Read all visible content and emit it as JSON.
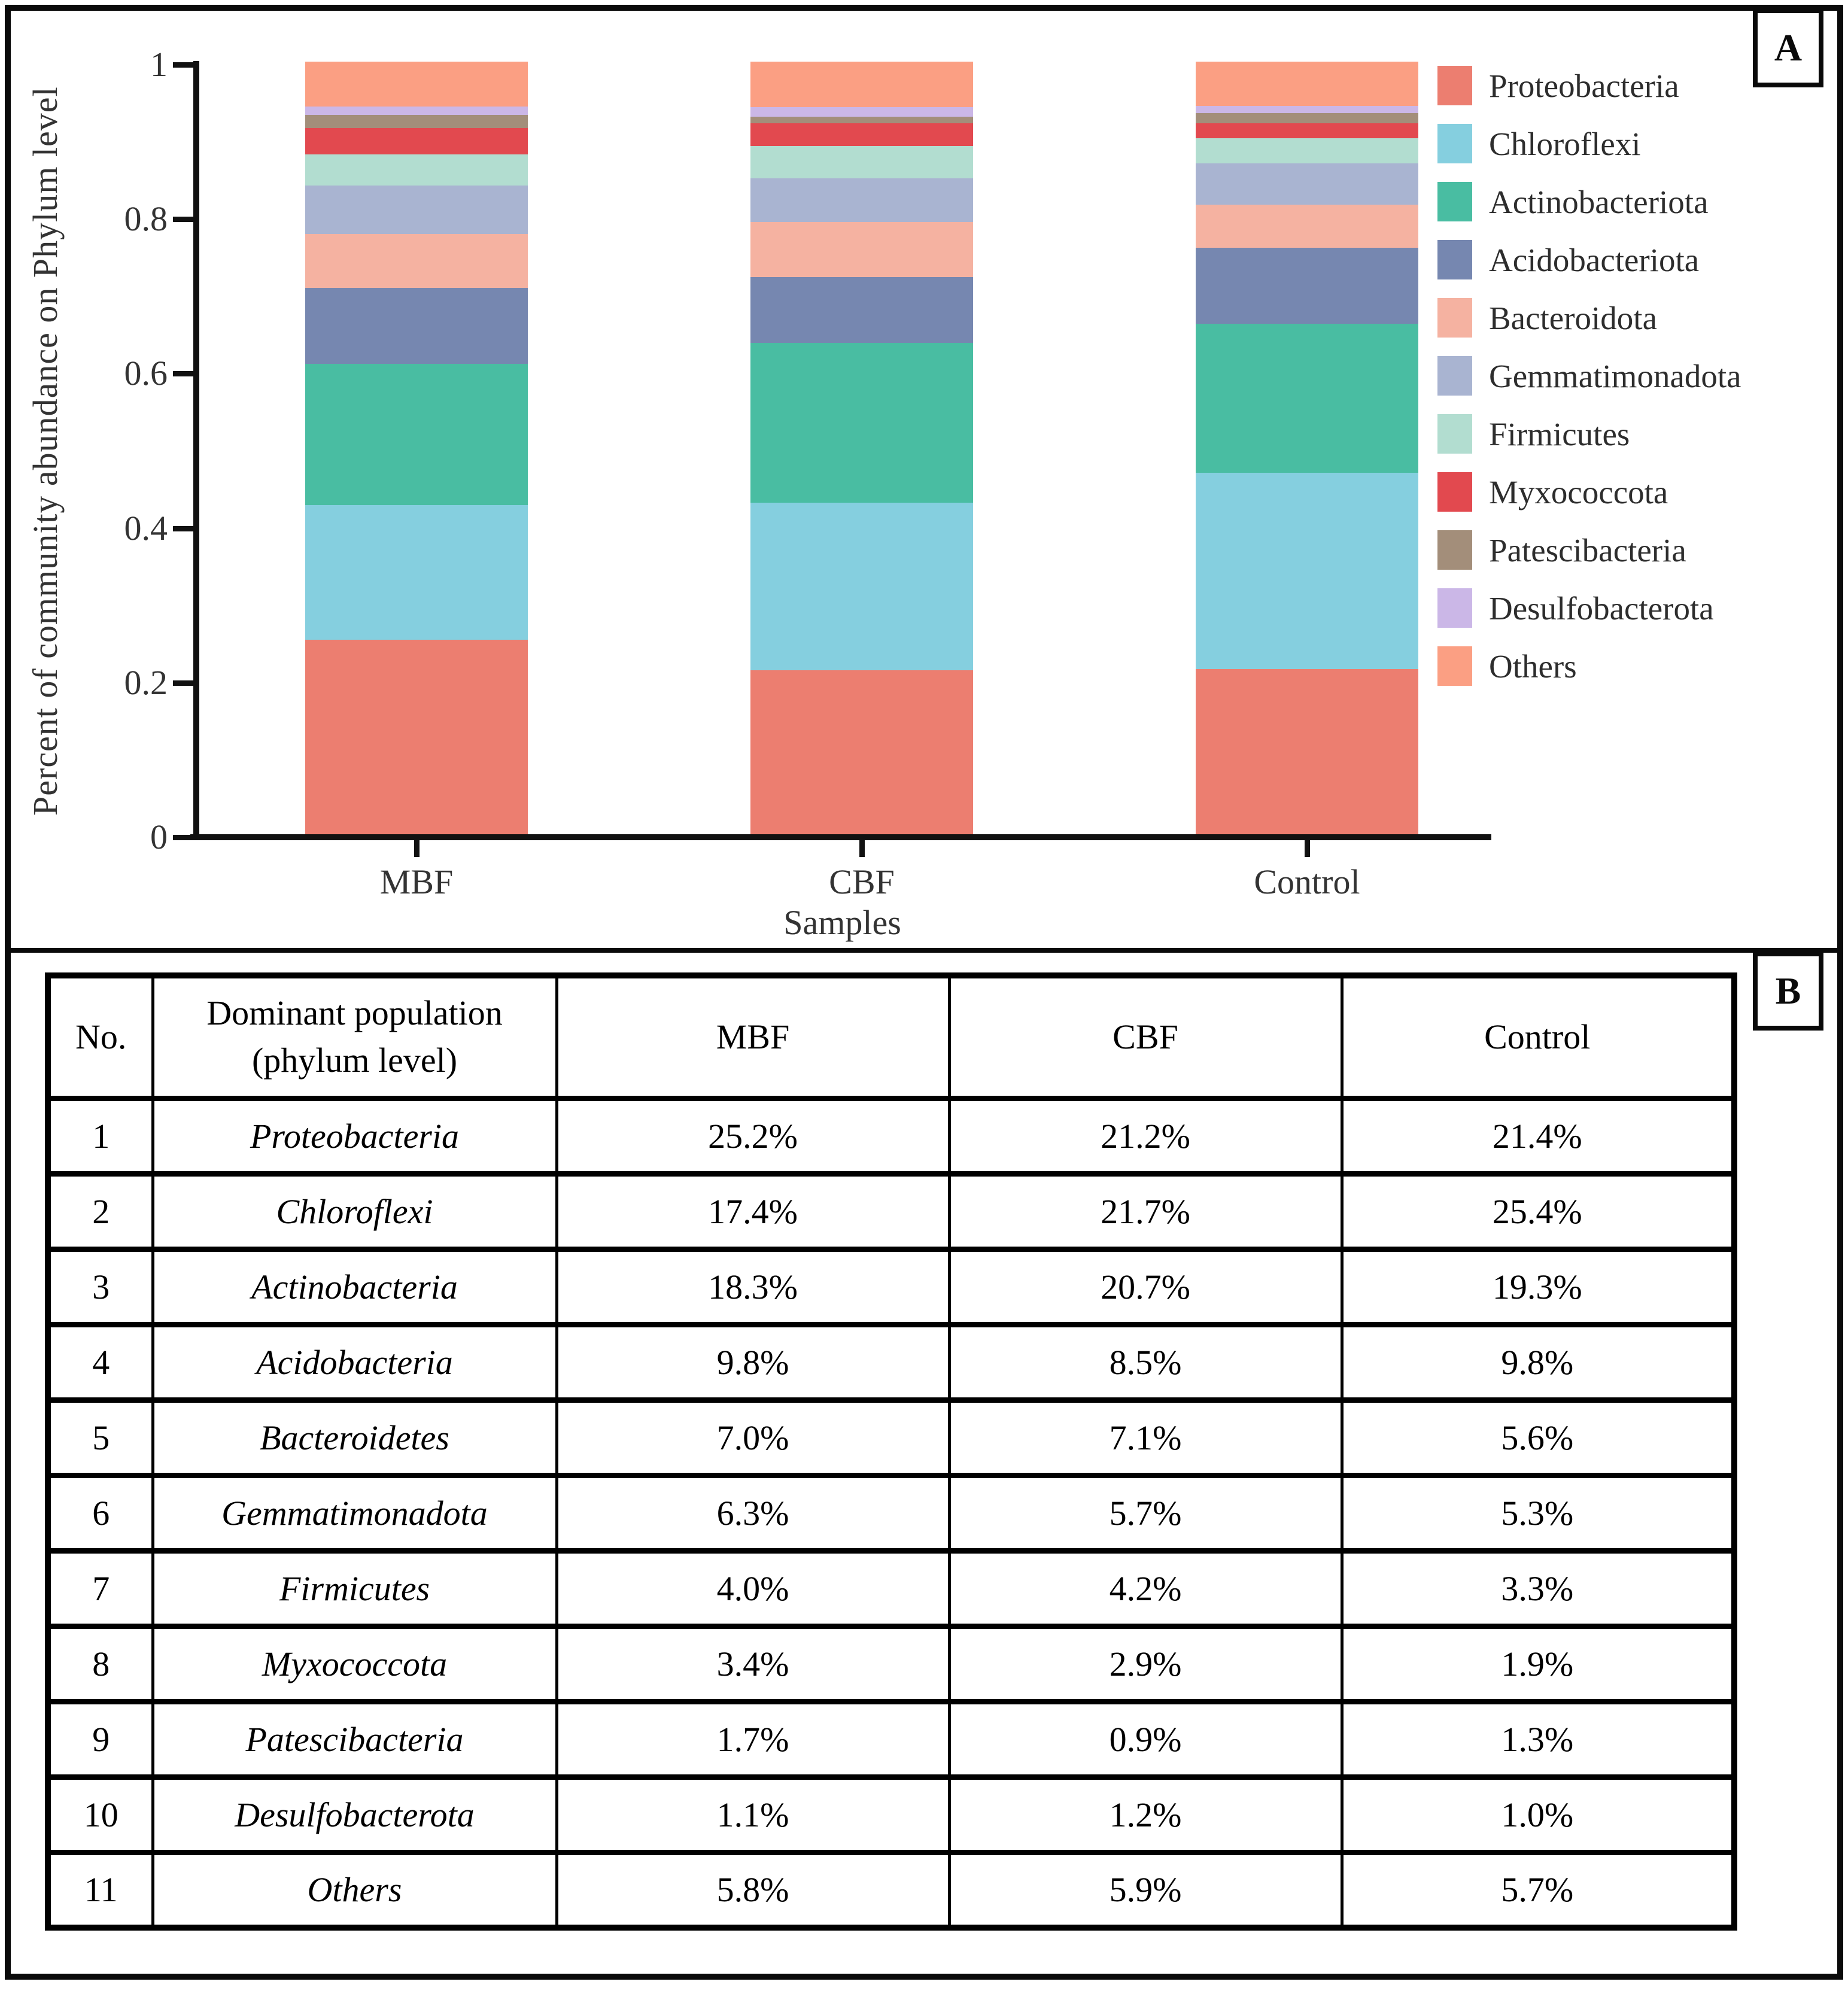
{
  "panels": {
    "a_label": "A",
    "b_label": "B"
  },
  "chart_data": {
    "type": "bar",
    "stacked": true,
    "normalized": true,
    "title": "",
    "xlabel": "Samples",
    "ylabel": "Percent of community abundance on Phylum level",
    "ylim": [
      0,
      1
    ],
    "yticks": [
      0,
      0.2,
      0.4,
      0.6,
      0.8,
      1
    ],
    "ytick_labels": [
      "0",
      "0.2",
      "0.4",
      "0.6",
      "0.8",
      "1"
    ],
    "categories": [
      "MBF",
      "CBF",
      "Control"
    ],
    "grid": false,
    "legend_position": "right",
    "series": [
      {
        "name": "Proteobacteria",
        "color": "#EC7E70",
        "values": [
          0.252,
          0.212,
          0.214
        ]
      },
      {
        "name": "Chloroflexi",
        "color": "#85CFDF",
        "values": [
          0.174,
          0.217,
          0.254
        ]
      },
      {
        "name": "Actinobacteriota",
        "color": "#49BDA2",
        "values": [
          0.183,
          0.207,
          0.193
        ]
      },
      {
        "name": "Acidobacteriota",
        "color": "#7687B0",
        "values": [
          0.098,
          0.085,
          0.098
        ]
      },
      {
        "name": "Bacteroidota",
        "color": "#F5B2A1",
        "values": [
          0.07,
          0.071,
          0.056
        ]
      },
      {
        "name": "Gemmatimonadota",
        "color": "#A9B4D1",
        "values": [
          0.063,
          0.057,
          0.053
        ]
      },
      {
        "name": "Firmicutes",
        "color": "#B2DDD0",
        "values": [
          0.04,
          0.042,
          0.033
        ]
      },
      {
        "name": "Myxococcota",
        "color": "#E2494F",
        "values": [
          0.034,
          0.029,
          0.019
        ]
      },
      {
        "name": "Patescibacteria",
        "color": "#A38E7A",
        "values": [
          0.017,
          0.009,
          0.013
        ]
      },
      {
        "name": "Desulfobacterota",
        "color": "#CBB7E7",
        "values": [
          0.011,
          0.012,
          0.01
        ]
      },
      {
        "name": "Others",
        "color": "#FB9F83",
        "values": [
          0.058,
          0.059,
          0.057
        ]
      }
    ]
  },
  "table": {
    "headers": {
      "no": "No.",
      "population": "Dominant population\n(phylum level)",
      "mbf": "MBF",
      "cbf": "CBF",
      "control": "Control"
    },
    "rows": [
      {
        "no": "1",
        "population": "Proteobacteria",
        "values": [
          "25.2%",
          "21.2%",
          "21.4%"
        ]
      },
      {
        "no": "2",
        "population": "Chloroflexi",
        "values": [
          "17.4%",
          "21.7%",
          "25.4%"
        ]
      },
      {
        "no": "3",
        "population": "Actinobacteria",
        "values": [
          "18.3%",
          "20.7%",
          "19.3%"
        ]
      },
      {
        "no": "4",
        "population": "Acidobacteria",
        "values": [
          "9.8%",
          "8.5%",
          "9.8%"
        ]
      },
      {
        "no": "5",
        "population": "Bacteroidetes",
        "values": [
          "7.0%",
          "7.1%",
          "5.6%"
        ]
      },
      {
        "no": "6",
        "population": "Gemmatimonadota",
        "values": [
          "6.3%",
          "5.7%",
          "5.3%"
        ]
      },
      {
        "no": "7",
        "population": "Firmicutes",
        "values": [
          "4.0%",
          "4.2%",
          "3.3%"
        ]
      },
      {
        "no": "8",
        "population": "Myxococcota",
        "values": [
          "3.4%",
          "2.9%",
          "1.9%"
        ]
      },
      {
        "no": "9",
        "population": "Patescibacteria",
        "values": [
          "1.7%",
          "0.9%",
          "1.3%"
        ]
      },
      {
        "no": "10",
        "population": "Desulfobacterota",
        "values": [
          "1.1%",
          "1.2%",
          "1.0%"
        ]
      },
      {
        "no": "11",
        "population": "Others",
        "values": [
          "5.8%",
          "5.9%",
          "5.7%"
        ]
      }
    ]
  }
}
